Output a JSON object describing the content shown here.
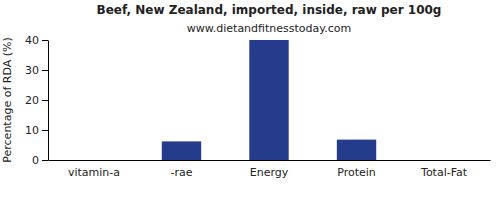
{
  "chart_data": {
    "type": "bar",
    "title": "Beef, New Zealand, imported, inside, raw per 100g",
    "subtitle": "www.dietandfitnesstoday.com",
    "y_label": "Percentage of RDA (%)",
    "categories": [
      "vitamin-a",
      "-rae",
      "Energy",
      "Protein",
      "Total-Fat"
    ],
    "values": [
      0,
      6.2,
      40,
      6.8,
      0
    ],
    "color": "#253b8b",
    "ylim": [
      0,
      40
    ],
    "yticks": [
      0,
      10,
      20,
      30,
      40
    ],
    "grid": false
  }
}
